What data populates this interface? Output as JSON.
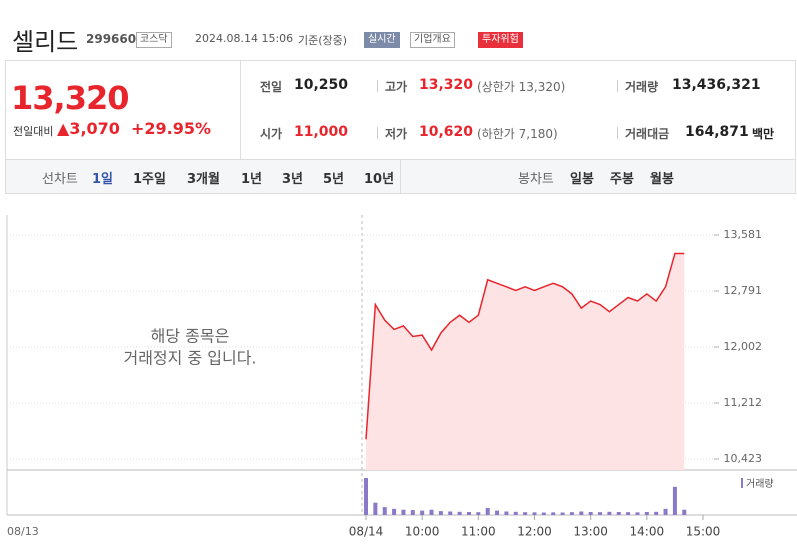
{
  "header": {
    "name": "셀리드",
    "code": "299660",
    "market": "코스닥",
    "date": "2024.08.14 15:06",
    "basis": "기준(장중)",
    "buttons": [
      "실시간",
      "기업개요",
      "투자위험"
    ]
  },
  "price": {
    "current": "13,320",
    "change_label": "전일대비",
    "change": "3,070",
    "change_rate": "+29.95%"
  },
  "stats": [
    [
      {
        "label": "전일",
        "value": "10,250"
      },
      {
        "label": "고가",
        "value": "13,320",
        "note": "(상한가 13,320)"
      },
      {
        "label": "거래량",
        "value": "13,436,321"
      }
    ],
    [
      {
        "label": "시가",
        "value": "11,000"
      },
      {
        "label": "저가",
        "value": "10,620",
        "note": "(하한가 7,180)"
      },
      {
        "label": "거래대금",
        "value": "164,871",
        "unit": "백만"
      }
    ]
  ],
  "tabs": {
    "line_label": "선차트",
    "line_periods": [
      "1일",
      "1주일",
      "3개월",
      "1년",
      "3년",
      "5년",
      "10년"
    ],
    "candle_label": "봉차트",
    "candle_periods": [
      "일봉",
      "주봉",
      "월봉"
    ]
  },
  "chart_data": {
    "type": "line",
    "prev_label": "08/13",
    "message": [
      "해당 종목은",
      "거래정지 중 입니다."
    ],
    "categories": [
      "08/14",
      null,
      null,
      null,
      null,
      null,
      "10:00",
      null,
      null,
      null,
      null,
      null,
      "11:00",
      null,
      null,
      null,
      null,
      null,
      "12:00",
      null,
      null,
      null,
      null,
      null,
      "13:00",
      null,
      null,
      null,
      null,
      null,
      "14:00",
      null,
      null,
      null,
      null,
      null,
      "15:00"
    ],
    "series": [
      {
        "color": "#e8252c",
        "fill": "#fde3e3",
        "values": [
          10700,
          12600,
          12380,
          12250,
          12300,
          12150,
          12170,
          11960,
          12200,
          12350,
          12450,
          12350,
          12450,
          12950,
          12900,
          12850,
          12800,
          12850,
          12800,
          12850,
          12900,
          12850,
          12750,
          12550,
          12650,
          12600,
          12500,
          12600,
          12700,
          12650,
          12750,
          12650,
          12850,
          13320,
          13320,
          null,
          null
        ]
      }
    ],
    "volume": {
      "name": "거래량",
      "color": "#8a78c8",
      "ylim": [
        0,
        2500000
      ],
      "values": [
        2100000,
        700000,
        450000,
        350000,
        300000,
        280000,
        250000,
        300000,
        220000,
        200000,
        180000,
        170000,
        160000,
        400000,
        250000,
        200000,
        180000,
        160000,
        150000,
        140000,
        150000,
        140000,
        160000,
        200000,
        170000,
        160000,
        180000,
        170000,
        160000,
        150000,
        170000,
        180000,
        350000,
        1600000,
        300000,
        null,
        null
      ]
    },
    "ylim": [
      10423,
      13581
    ],
    "yticks": [
      {
        "value": 10423,
        "label": "10,423"
      },
      {
        "value": 11212,
        "label": "11,212"
      },
      {
        "value": 12002,
        "label": "12,002"
      },
      {
        "value": 12791,
        "label": "12,791"
      },
      {
        "value": 13581,
        "label": "13,581"
      }
    ],
    "grid": true
  }
}
